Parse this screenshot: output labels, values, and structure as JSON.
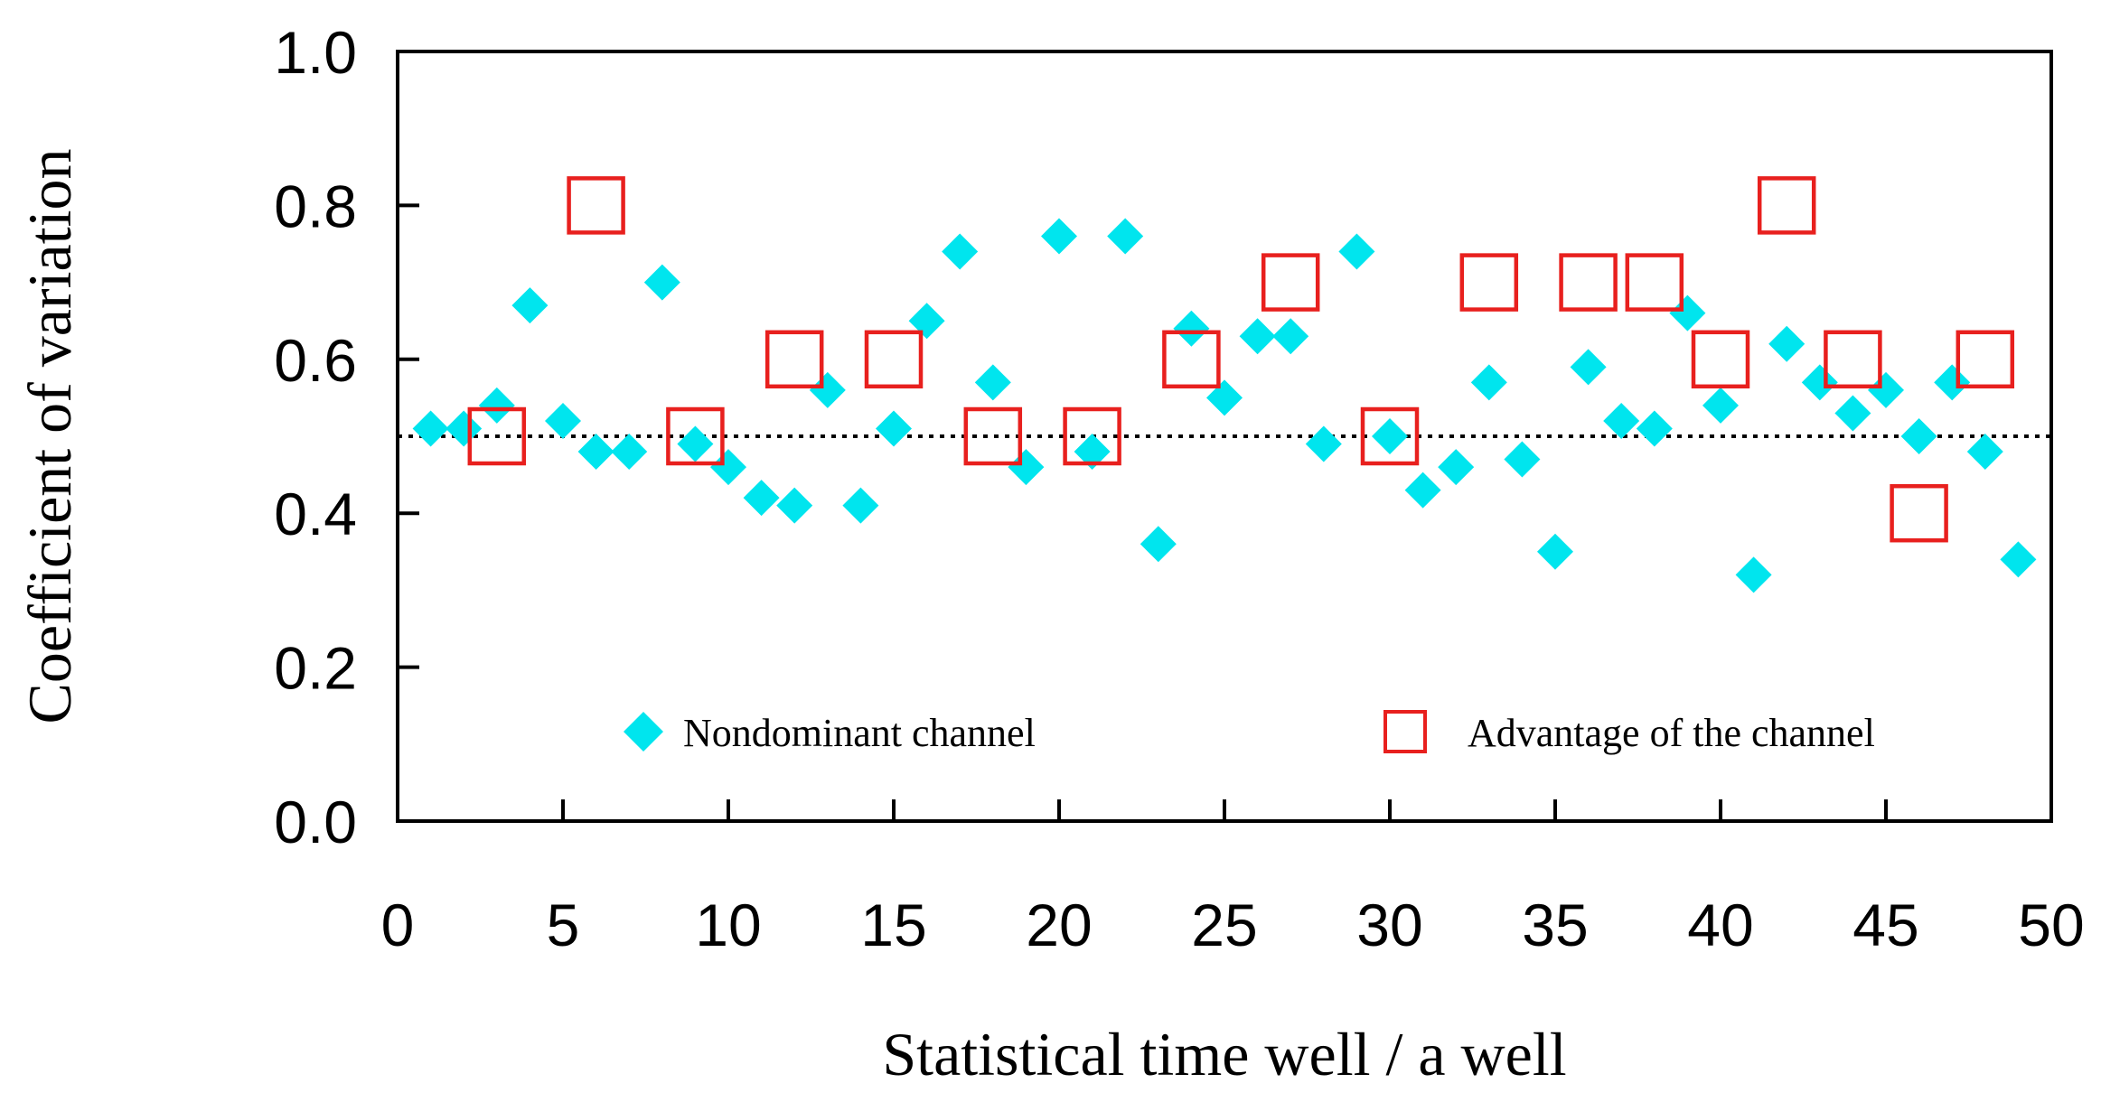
{
  "chart_data": {
    "type": "scatter",
    "title": "",
    "xlabel": "Statistical time well / a well",
    "ylabel": "Coefficient of variation",
    "xlim": [
      0,
      50
    ],
    "ylim": [
      0.0,
      1.0
    ],
    "x_ticks": [
      "0",
      "5",
      "10",
      "15",
      "20",
      "25",
      "30",
      "35",
      "40",
      "45",
      "50"
    ],
    "y_ticks": [
      "0.0",
      "0.2",
      "0.4",
      "0.6",
      "0.8",
      "1.0"
    ],
    "reference_line": {
      "y": 0.5,
      "style": "dotted",
      "color": "#000000"
    },
    "legend_placement": "bottom-inside",
    "series": [
      {
        "name": "Nondominant channel",
        "marker": "diamond",
        "color": "#00e5ee",
        "points": [
          [
            1,
            0.51
          ],
          [
            2,
            0.51
          ],
          [
            3,
            0.54
          ],
          [
            4,
            0.67
          ],
          [
            5,
            0.52
          ],
          [
            6,
            0.48
          ],
          [
            7,
            0.48
          ],
          [
            8,
            0.7
          ],
          [
            9,
            0.49
          ],
          [
            10,
            0.46
          ],
          [
            11,
            0.42
          ],
          [
            12,
            0.41
          ],
          [
            13,
            0.56
          ],
          [
            14,
            0.41
          ],
          [
            15,
            0.51
          ],
          [
            16,
            0.65
          ],
          [
            17,
            0.74
          ],
          [
            18,
            0.57
          ],
          [
            19,
            0.46
          ],
          [
            20,
            0.76
          ],
          [
            21,
            0.48
          ],
          [
            22,
            0.76
          ],
          [
            23,
            0.36
          ],
          [
            24,
            0.64
          ],
          [
            25,
            0.55
          ],
          [
            26,
            0.63
          ],
          [
            27,
            0.63
          ],
          [
            28,
            0.49
          ],
          [
            29,
            0.74
          ],
          [
            30,
            0.5
          ],
          [
            31,
            0.43
          ],
          [
            32,
            0.46
          ],
          [
            33,
            0.57
          ],
          [
            34,
            0.47
          ],
          [
            35,
            0.35
          ],
          [
            36,
            0.59
          ],
          [
            37,
            0.52
          ],
          [
            38,
            0.51
          ],
          [
            39,
            0.66
          ],
          [
            40,
            0.54
          ],
          [
            41,
            0.32
          ],
          [
            42,
            0.62
          ],
          [
            43,
            0.57
          ],
          [
            44,
            0.53
          ],
          [
            45,
            0.56
          ],
          [
            46,
            0.5
          ],
          [
            47,
            0.57
          ],
          [
            48,
            0.48
          ],
          [
            49,
            0.34
          ]
        ]
      },
      {
        "name": "Advantage of the channel",
        "marker": "square-open",
        "color": "#e8201e",
        "points": [
          [
            3,
            0.5
          ],
          [
            6,
            0.8
          ],
          [
            9,
            0.5
          ],
          [
            12,
            0.6
          ],
          [
            15,
            0.6
          ],
          [
            18,
            0.5
          ],
          [
            21,
            0.5
          ],
          [
            24,
            0.6
          ],
          [
            27,
            0.7
          ],
          [
            30,
            0.5
          ],
          [
            33,
            0.7
          ],
          [
            36,
            0.7
          ],
          [
            38,
            0.7
          ],
          [
            40,
            0.6
          ],
          [
            42,
            0.8
          ],
          [
            44,
            0.6
          ],
          [
            46,
            0.4
          ],
          [
            48,
            0.6
          ]
        ]
      }
    ]
  }
}
